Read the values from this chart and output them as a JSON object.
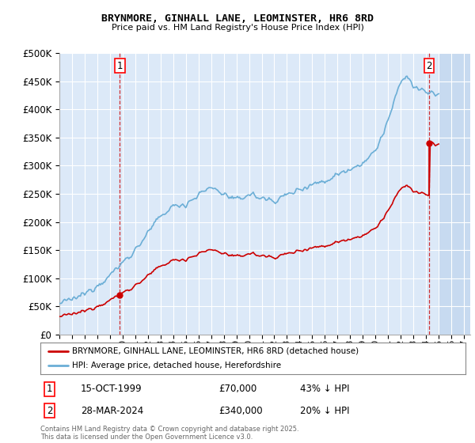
{
  "title": "BRYNMORE, GINHALL LANE, LEOMINSTER, HR6 8RD",
  "subtitle": "Price paid vs. HM Land Registry's House Price Index (HPI)",
  "ylim": [
    0,
    500000
  ],
  "yticks": [
    0,
    50000,
    100000,
    150000,
    200000,
    250000,
    300000,
    350000,
    400000,
    450000,
    500000
  ],
  "ytick_labels": [
    "£0",
    "£50K",
    "£100K",
    "£150K",
    "£200K",
    "£250K",
    "£300K",
    "£350K",
    "£400K",
    "£450K",
    "£500K"
  ],
  "hpi_color": "#6baed6",
  "price_color": "#cc0000",
  "sale1_date": 1999.79,
  "sale1_price": 70000,
  "sale2_date": 2024.24,
  "sale2_price": 340000,
  "hpi_discount1": 0.57,
  "hpi_discount2": 0.8,
  "legend_label1": "BRYNMORE, GINHALL LANE, LEOMINSTER, HR6 8RD (detached house)",
  "legend_label2": "HPI: Average price, detached house, Herefordshire",
  "annotation1_date": "15-OCT-1999",
  "annotation1_price": "£70,000",
  "annotation1_hpi": "43% ↓ HPI",
  "annotation2_date": "28-MAR-2024",
  "annotation2_price": "£340,000",
  "annotation2_hpi": "20% ↓ HPI",
  "footnote": "Contains HM Land Registry data © Crown copyright and database right 2025.\nThis data is licensed under the Open Government Licence v3.0.",
  "bg_color": "#dce9f8",
  "hatch_color": "#c5d9f0",
  "future_start": 2025.0,
  "xlim_start": 1995.0,
  "xlim_end": 2027.5
}
